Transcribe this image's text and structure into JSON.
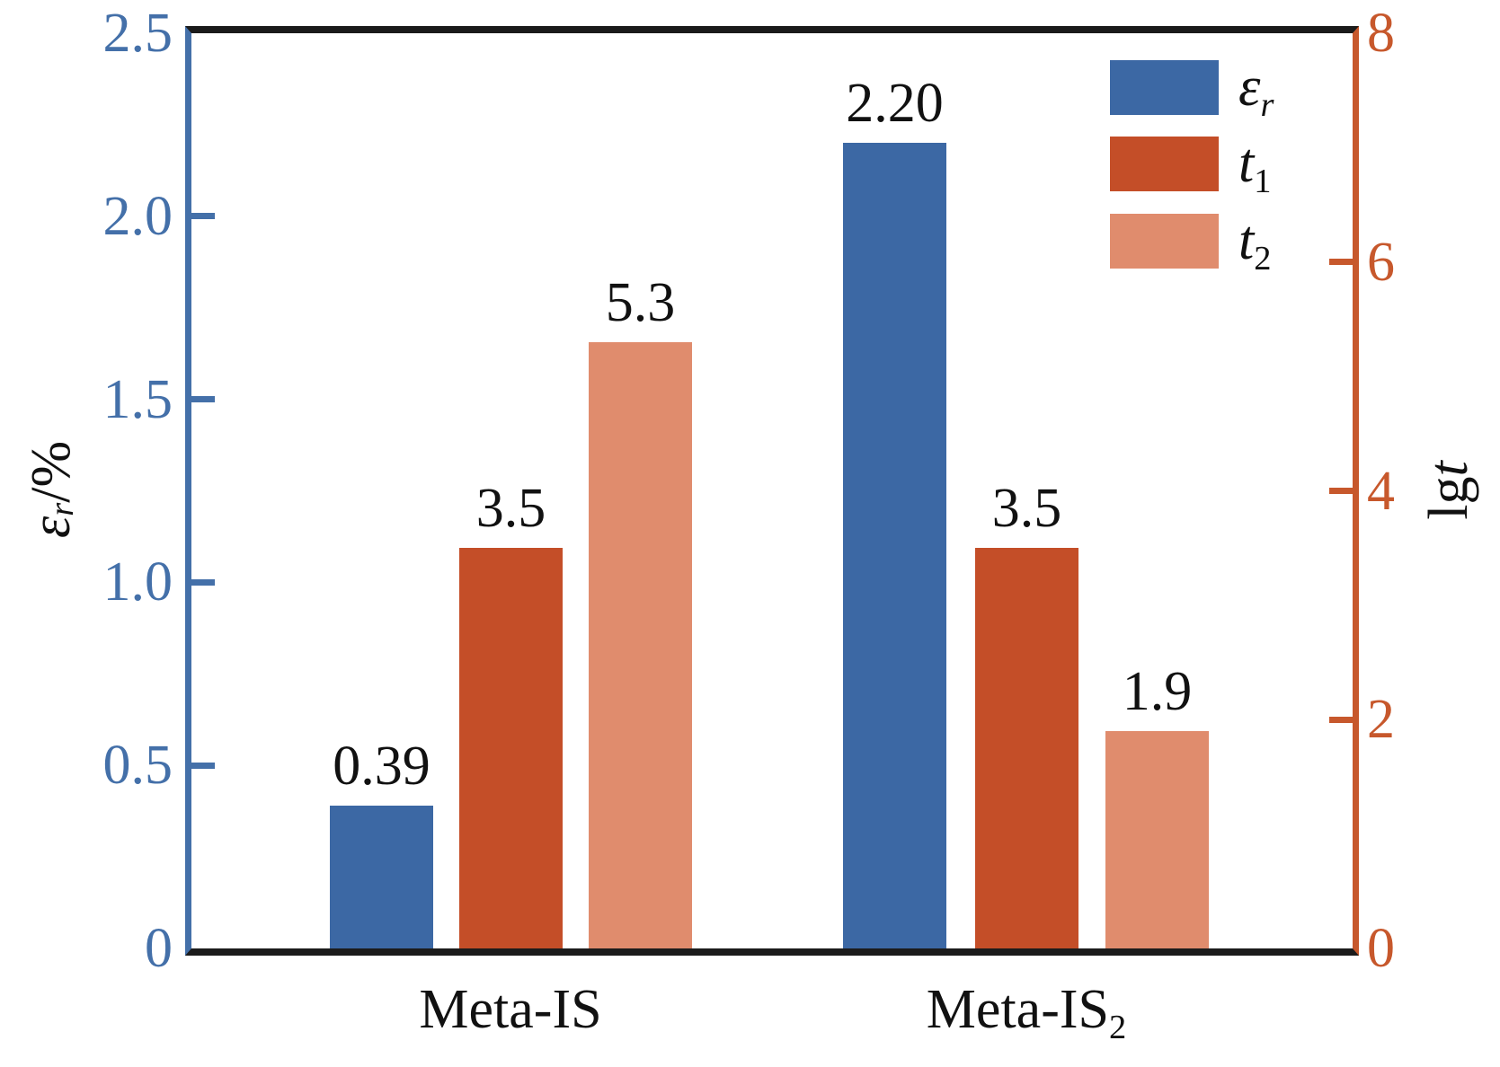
{
  "figure": {
    "background": "#ffffff",
    "spine_color": "#1b1b1b"
  },
  "chart_data": {
    "type": "bar",
    "grid": false,
    "legend_position": "top-right",
    "categories": [
      {
        "text": "Meta-IS",
        "sub": ""
      },
      {
        "text": "Meta-IS",
        "sub": "2"
      }
    ],
    "series": [
      {
        "name": "epsilon_r",
        "symbol": "ε",
        "sub": "r",
        "axis": "left",
        "color": "#3C68A4",
        "values": [
          0.39,
          2.2
        ],
        "value_labels": [
          "0.39",
          "2.20"
        ]
      },
      {
        "name": "t1",
        "symbol": "t",
        "sub": "1",
        "axis": "right",
        "color": "#C44E28",
        "values": [
          3.5,
          3.5
        ],
        "value_labels": [
          "3.5",
          "3.5"
        ]
      },
      {
        "name": "t2",
        "symbol": "t",
        "sub": "2",
        "axis": "right",
        "color": "#E08C6D",
        "values": [
          5.3,
          1.9
        ],
        "value_labels": [
          "5.3",
          "1.9"
        ]
      }
    ],
    "left_axis": {
      "label_symbol": "ε",
      "label_sub": "r",
      "label_suffix": "/%",
      "range": [
        0,
        2.5
      ],
      "ticks": [
        "0",
        "0.5",
        "1.0",
        "1.5",
        "2.0",
        "2.5"
      ],
      "tick_values": [
        0,
        0.5,
        1.0,
        1.5,
        2.0,
        2.5
      ],
      "color": "#4470A9"
    },
    "right_axis": {
      "label_prefix": "lg",
      "label_symbol": "t",
      "range": [
        0,
        8
      ],
      "ticks": [
        "0",
        "2",
        "4",
        "6",
        "8"
      ],
      "tick_values": [
        0,
        2,
        4,
        6,
        8
      ],
      "color": "#C7582C"
    }
  }
}
